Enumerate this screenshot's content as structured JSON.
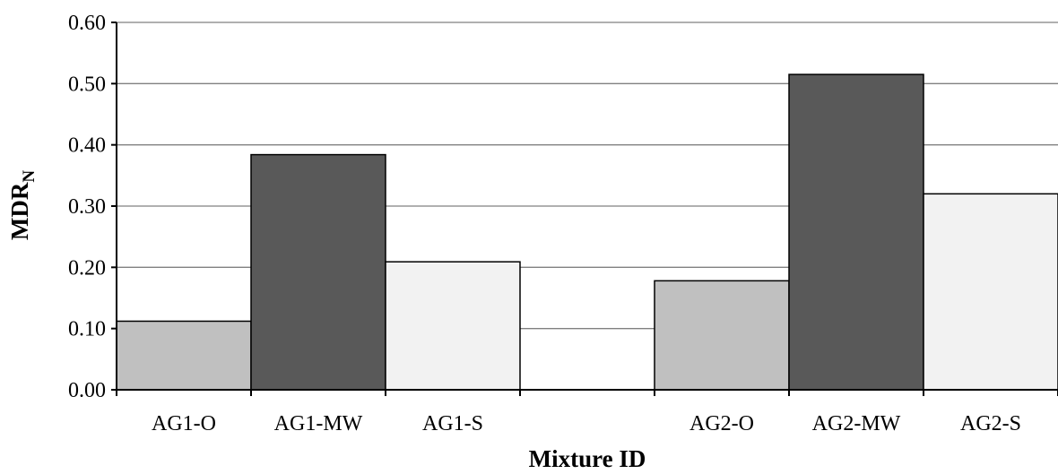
{
  "chart_data": {
    "type": "bar",
    "xlabel": "Mixture ID",
    "ylabel_main": "MDR",
    "ylabel_sub": "N",
    "ylim": [
      0,
      0.6
    ],
    "yticks": [
      "0.00",
      "0.10",
      "0.20",
      "0.30",
      "0.40",
      "0.50",
      "0.60"
    ],
    "ytick_values": [
      0,
      0.1,
      0.2,
      0.3,
      0.4,
      0.5,
      0.6
    ],
    "grid": true,
    "legend": "none",
    "categories": [
      "AG1-O",
      "AG1-MW",
      "AG1-S",
      "",
      "AG2-O",
      "AG2-MW",
      "AG2-S"
    ],
    "values": [
      0.112,
      0.384,
      0.209,
      null,
      0.178,
      0.515,
      0.32
    ],
    "colors": [
      "#c0c0c0",
      "#595959",
      "#f2f2f2",
      null,
      "#c0c0c0",
      "#595959",
      "#f2f2f2"
    ]
  }
}
